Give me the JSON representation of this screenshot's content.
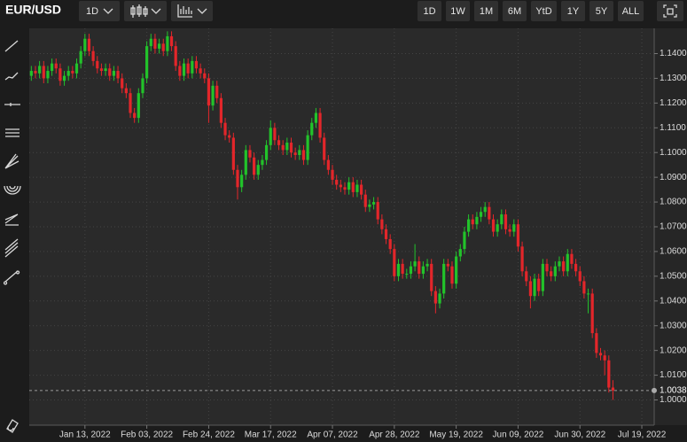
{
  "toolbar": {
    "symbol": "EUR/USD",
    "interval": "1D",
    "ranges": [
      "1D",
      "1W",
      "1M",
      "6M",
      "YtD",
      "1Y",
      "5Y",
      "ALL"
    ]
  },
  "chart_data": {
    "type": "candlestick",
    "up_color": "#22c32a",
    "down_color": "#e3262a",
    "grid": true,
    "ylim": [
      0.9898,
      1.1502
    ],
    "xlim": [
      -0.5,
      151
    ],
    "yticks": [
      {
        "value": 1.0,
        "label": "1.0000"
      },
      {
        "value": 1.01,
        "label": "1.0100"
      },
      {
        "value": 1.02,
        "label": "1.0200"
      },
      {
        "value": 1.03,
        "label": "1.0300"
      },
      {
        "value": 1.04,
        "label": "1.0400"
      },
      {
        "value": 1.05,
        "label": "1.0500"
      },
      {
        "value": 1.06,
        "label": "1.0600"
      },
      {
        "value": 1.07,
        "label": "1.0700"
      },
      {
        "value": 1.08,
        "label": "1.0800"
      },
      {
        "value": 1.09,
        "label": "1.0900"
      },
      {
        "value": 1.1,
        "label": "1.1000"
      },
      {
        "value": 1.11,
        "label": "1.1100"
      },
      {
        "value": 1.12,
        "label": "1.1200"
      },
      {
        "value": 1.13,
        "label": "1.1300"
      },
      {
        "value": 1.14,
        "label": "1.1400"
      }
    ],
    "xticks": [
      {
        "value": 13,
        "label": "Jan 13, 2022"
      },
      {
        "value": 28,
        "label": "Feb 03, 2022"
      },
      {
        "value": 43,
        "label": "Feb 24, 2022"
      },
      {
        "value": 58,
        "label": "Mar 17, 2022"
      },
      {
        "value": 73,
        "label": "Apr 07, 2022"
      },
      {
        "value": 88,
        "label": "Apr 28, 2022"
      },
      {
        "value": 103,
        "label": "May 19, 2022"
      },
      {
        "value": 118,
        "label": "Jun 09, 2022"
      },
      {
        "value": 133,
        "label": "Jun 30, 2022"
      },
      {
        "value": 148,
        "label": "Jul 19, 2022"
      }
    ],
    "last_price": {
      "value": 1.0038,
      "label": "1.0038"
    },
    "open": [
      1.131,
      1.133,
      1.132,
      1.135,
      1.13,
      1.133,
      1.136,
      1.134,
      1.129,
      1.131,
      1.133,
      1.132,
      1.136,
      1.141,
      1.146,
      1.141,
      1.137,
      1.134,
      1.133,
      1.134,
      1.131,
      1.133,
      1.13,
      1.126,
      1.124,
      1.116,
      1.114,
      1.124,
      1.13,
      1.143,
      1.146,
      1.142,
      1.144,
      1.141,
      1.147,
      1.143,
      1.135,
      1.131,
      1.136,
      1.132,
      1.137,
      1.134,
      1.132,
      1.13,
      1.119,
      1.127,
      1.122,
      1.112,
      1.107,
      1.106,
      1.093,
      1.086,
      1.091,
      1.101,
      1.098,
      1.091,
      1.095,
      1.097,
      1.103,
      1.11,
      1.105,
      1.103,
      1.101,
      1.104,
      1.1,
      1.099,
      1.101,
      1.097,
      1.107,
      1.112,
      1.116,
      1.106,
      1.097,
      1.093,
      1.089,
      1.087,
      1.086,
      1.085,
      1.088,
      1.084,
      1.087,
      1.083,
      1.078,
      1.079,
      1.08,
      1.073,
      1.069,
      1.065,
      1.061,
      1.05,
      1.055,
      1.051,
      1.051,
      1.054,
      1.056,
      1.051,
      1.054,
      1.055,
      1.044,
      1.039,
      1.043,
      1.055,
      1.054,
      1.047,
      1.058,
      1.061,
      1.068,
      1.073,
      1.071,
      1.074,
      1.076,
      1.078,
      1.073,
      1.068,
      1.071,
      1.075,
      1.069,
      1.068,
      1.071,
      1.062,
      1.052,
      1.048,
      1.042,
      1.049,
      1.044,
      1.055,
      1.052,
      1.05,
      1.054,
      1.056,
      1.052,
      1.059,
      1.055,
      1.052,
      1.048,
      1.043,
      1.043,
      1.027,
      1.019,
      1.018,
      1.016,
      1.005
    ],
    "high": [
      1.135,
      1.135,
      1.137,
      1.137,
      1.135,
      1.138,
      1.138,
      1.136,
      1.133,
      1.135,
      1.135,
      1.138,
      1.143,
      1.148,
      1.148,
      1.143,
      1.139,
      1.136,
      1.136,
      1.136,
      1.135,
      1.135,
      1.132,
      1.128,
      1.126,
      1.118,
      1.126,
      1.132,
      1.145,
      1.148,
      1.148,
      1.146,
      1.146,
      1.149,
      1.149,
      1.145,
      1.137,
      1.138,
      1.138,
      1.139,
      1.139,
      1.136,
      1.134,
      1.132,
      1.129,
      1.129,
      1.124,
      1.114,
      1.109,
      1.108,
      1.095,
      1.093,
      1.103,
      1.103,
      1.1,
      1.097,
      1.099,
      1.105,
      1.113,
      1.112,
      1.107,
      1.105,
      1.106,
      1.106,
      1.102,
      1.103,
      1.103,
      1.109,
      1.114,
      1.118,
      1.118,
      1.108,
      1.099,
      1.095,
      1.091,
      1.089,
      1.088,
      1.09,
      1.09,
      1.089,
      1.089,
      1.085,
      1.081,
      1.082,
      1.082,
      1.075,
      1.071,
      1.067,
      1.063,
      1.057,
      1.057,
      1.053,
      1.056,
      1.063,
      1.058,
      1.056,
      1.057,
      1.057,
      1.046,
      1.045,
      1.057,
      1.057,
      1.056,
      1.06,
      1.063,
      1.07,
      1.075,
      1.075,
      1.076,
      1.078,
      1.08,
      1.08,
      1.075,
      1.073,
      1.077,
      1.077,
      1.071,
      1.073,
      1.073,
      1.064,
      1.054,
      1.05,
      1.051,
      1.051,
      1.057,
      1.057,
      1.054,
      1.056,
      1.058,
      1.058,
      1.061,
      1.061,
      1.057,
      1.054,
      1.05,
      1.045,
      1.045,
      1.029,
      1.021,
      1.02,
      1.018,
      1.008
    ],
    "low": [
      1.129,
      1.13,
      1.13,
      1.128,
      1.128,
      1.131,
      1.132,
      1.127,
      1.127,
      1.129,
      1.13,
      1.13,
      1.134,
      1.139,
      1.139,
      1.135,
      1.132,
      1.131,
      1.131,
      1.129,
      1.129,
      1.128,
      1.124,
      1.122,
      1.114,
      1.112,
      1.112,
      1.122,
      1.128,
      1.141,
      1.14,
      1.14,
      1.139,
      1.139,
      1.141,
      1.133,
      1.129,
      1.129,
      1.13,
      1.13,
      1.132,
      1.13,
      1.128,
      1.112,
      1.117,
      1.12,
      1.11,
      1.105,
      1.104,
      1.091,
      1.081,
      1.084,
      1.089,
      1.096,
      1.089,
      1.089,
      1.093,
      1.095,
      1.101,
      1.103,
      1.101,
      1.099,
      1.099,
      1.098,
      1.097,
      1.097,
      1.095,
      1.095,
      1.105,
      1.11,
      1.104,
      1.095,
      1.091,
      1.087,
      1.085,
      1.084,
      1.083,
      1.083,
      1.082,
      1.082,
      1.081,
      1.076,
      1.076,
      1.077,
      1.071,
      1.067,
      1.063,
      1.059,
      1.048,
      1.048,
      1.049,
      1.049,
      1.049,
      1.052,
      1.049,
      1.049,
      1.052,
      1.042,
      1.035,
      1.037,
      1.041,
      1.052,
      1.045,
      1.045,
      1.056,
      1.059,
      1.066,
      1.069,
      1.069,
      1.072,
      1.074,
      1.071,
      1.066,
      1.066,
      1.069,
      1.067,
      1.066,
      1.066,
      1.06,
      1.05,
      1.046,
      1.037,
      1.04,
      1.042,
      1.042,
      1.05,
      1.048,
      1.048,
      1.052,
      1.05,
      1.05,
      1.053,
      1.05,
      1.046,
      1.041,
      1.035,
      1.025,
      1.017,
      1.016,
      1.01,
      1.003,
      1.0
    ],
    "close": [
      1.133,
      1.132,
      1.135,
      1.13,
      1.133,
      1.136,
      1.134,
      1.129,
      1.131,
      1.133,
      1.132,
      1.136,
      1.141,
      1.146,
      1.141,
      1.137,
      1.134,
      1.133,
      1.134,
      1.131,
      1.133,
      1.13,
      1.126,
      1.124,
      1.116,
      1.114,
      1.124,
      1.13,
      1.143,
      1.146,
      1.142,
      1.144,
      1.141,
      1.147,
      1.143,
      1.135,
      1.131,
      1.136,
      1.132,
      1.137,
      1.134,
      1.132,
      1.13,
      1.119,
      1.127,
      1.122,
      1.112,
      1.107,
      1.106,
      1.093,
      1.086,
      1.091,
      1.101,
      1.098,
      1.091,
      1.095,
      1.097,
      1.103,
      1.11,
      1.105,
      1.103,
      1.101,
      1.104,
      1.1,
      1.099,
      1.101,
      1.097,
      1.107,
      1.112,
      1.116,
      1.106,
      1.097,
      1.093,
      1.089,
      1.087,
      1.086,
      1.085,
      1.088,
      1.084,
      1.087,
      1.083,
      1.078,
      1.079,
      1.08,
      1.073,
      1.069,
      1.065,
      1.061,
      1.05,
      1.055,
      1.051,
      1.051,
      1.054,
      1.056,
      1.051,
      1.054,
      1.055,
      1.044,
      1.039,
      1.043,
      1.055,
      1.054,
      1.047,
      1.058,
      1.061,
      1.068,
      1.073,
      1.071,
      1.074,
      1.076,
      1.078,
      1.073,
      1.068,
      1.071,
      1.075,
      1.069,
      1.068,
      1.071,
      1.062,
      1.052,
      1.048,
      1.042,
      1.049,
      1.044,
      1.055,
      1.052,
      1.05,
      1.054,
      1.056,
      1.052,
      1.059,
      1.055,
      1.052,
      1.048,
      1.043,
      1.043,
      1.027,
      1.019,
      1.018,
      1.016,
      1.005,
      1.0038
    ]
  }
}
